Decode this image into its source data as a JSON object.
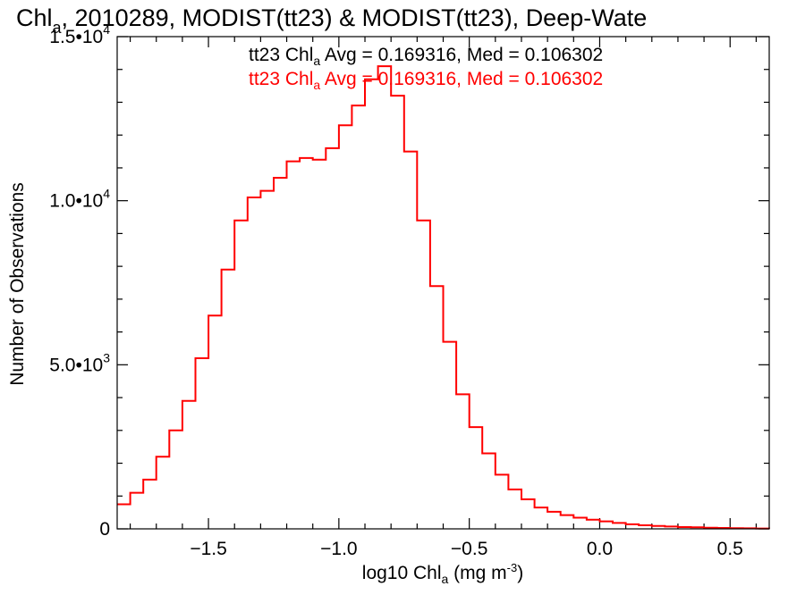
{
  "chart_data": {
    "type": "line",
    "title": {
      "part1": "Chl",
      "part1_sub": "a",
      "part2": ", 2010289, MODIST(tt23) & MODIST(tt23), Deep-Wate"
    },
    "xlabel": {
      "pre": "log10 Chl",
      "sub": "a",
      "mid": " (mg m",
      "sup": "-3",
      "post": ")"
    },
    "ylabel": "Number of Observations",
    "xlim": [
      -1.85,
      0.65
    ],
    "ylim": [
      0,
      15000
    ],
    "x_ticks": [
      {
        "value": -1.5,
        "label": "−1.5"
      },
      {
        "value": -1.0,
        "label": "−1.0"
      },
      {
        "value": -0.5,
        "label": "−0.5"
      },
      {
        "value": 0.0,
        "label": "0.0"
      },
      {
        "value": 0.5,
        "label": "0.5"
      }
    ],
    "y_ticks": [
      {
        "value": 0,
        "mant": "0",
        "exp": ""
      },
      {
        "value": 5000,
        "mant": "5.0•10",
        "exp": "3"
      },
      {
        "value": 10000,
        "mant": "1.0•10",
        "exp": "4"
      },
      {
        "value": 15000,
        "mant": "1.5•10",
        "exp": "4"
      }
    ],
    "annotations": [
      {
        "pre": "tt23 Chl",
        "sub": "a",
        "post": " Avg = 0.169316, Med = 0.106302",
        "color": "#000000"
      },
      {
        "pre": "tt23 Chl",
        "sub": "a",
        "post": " Avg = 0.169316, Med = 0.106302",
        "color": "#ff0000"
      }
    ],
    "series": [
      {
        "color": "#ff0000",
        "x": [
          -1.85,
          -1.8,
          -1.75,
          -1.7,
          -1.65,
          -1.6,
          -1.55,
          -1.5,
          -1.45,
          -1.4,
          -1.35,
          -1.3,
          -1.25,
          -1.2,
          -1.15,
          -1.1,
          -1.05,
          -1.0,
          -0.95,
          -0.9,
          -0.85,
          -0.8,
          -0.75,
          -0.7,
          -0.65,
          -0.6,
          -0.55,
          -0.5,
          -0.45,
          -0.4,
          -0.35,
          -0.3,
          -0.25,
          -0.2,
          -0.15,
          -0.1,
          -0.05,
          0.0,
          0.05,
          0.1,
          0.15,
          0.2,
          0.25,
          0.3,
          0.35,
          0.4,
          0.45,
          0.5,
          0.55,
          0.6,
          0.65
        ],
        "y": [
          750,
          1100,
          1500,
          2200,
          3000,
          3900,
          5200,
          6500,
          7900,
          9400,
          10100,
          10300,
          10700,
          11200,
          11300,
          11250,
          11600,
          12300,
          12900,
          13700,
          14100,
          13200,
          11500,
          9400,
          7400,
          5700,
          4100,
          3100,
          2300,
          1650,
          1200,
          900,
          650,
          520,
          420,
          340,
          280,
          230,
          180,
          140,
          110,
          90,
          70,
          55,
          45,
          35,
          28,
          20,
          15,
          10,
          8
        ]
      }
    ]
  }
}
